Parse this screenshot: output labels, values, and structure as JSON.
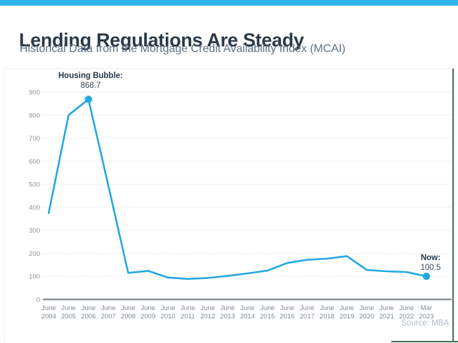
{
  "page": {
    "title": "Lending Regulations Are Steady",
    "subtitle": "Historical Data from the Mortgage Credit Availability Index (MCAI)"
  },
  "chart_data": {
    "type": "line",
    "title": "Lending Regulations Are Steady",
    "subtitle": "Historical Data from the Mortgage Credit Availability Index (MCAI)",
    "categories": [
      "June 2004",
      "June 2005",
      "June 2006",
      "June 2007",
      "June 2008",
      "June 2009",
      "June 2010",
      "June 2011",
      "June 2012",
      "June 2013",
      "June 2014",
      "June 2015",
      "June 2016",
      "June 2017",
      "June 2018",
      "June 2019",
      "June 2020",
      "June 2021",
      "June 2022",
      "Mar 2023"
    ],
    "values": [
      375,
      800,
      868.7,
      495,
      115,
      124,
      95,
      89,
      93,
      102,
      113,
      125,
      158,
      172,
      177,
      188,
      128,
      122,
      119,
      100.5
    ],
    "yticks": [
      0,
      100,
      200,
      300,
      400,
      500,
      600,
      700,
      800,
      900
    ],
    "ylim": [
      0,
      900
    ],
    "grid": true,
    "legend": "none",
    "marker_indices": [
      2,
      19
    ],
    "annotations": [
      {
        "label": "Housing Bubble:",
        "value": "868.7",
        "point": "June 2006"
      },
      {
        "label": "Now:",
        "value": "100.5",
        "point": "Mar 2023"
      }
    ],
    "source": "Source: MBA"
  },
  "colors": {
    "top_bar": "#2fb3e8",
    "line": "#23a8e2",
    "title_text": "#2a3a4b",
    "subtitle_text": "#5e7080",
    "axis_line": "#8b9299",
    "tick_text": "#8b959e",
    "grid_line": "#edeff0",
    "grid_line_dotted": "#dfe4e2",
    "source_text": "#b3bcc4",
    "frame_green": "#446b51"
  }
}
